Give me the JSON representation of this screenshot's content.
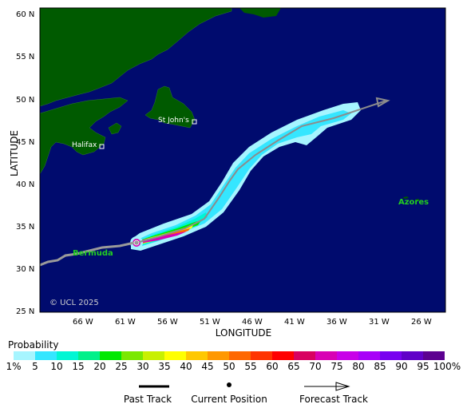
{
  "map": {
    "y_axis_title": "LATITUDE",
    "x_axis_title": "LONGITUDE",
    "lat_ticks": [
      "60 N",
      "55 N",
      "50 N",
      "45 N",
      "40 N",
      "35 N",
      "30 N",
      "25 N"
    ],
    "lon_ticks": [
      "66 W",
      "61 W",
      "56 W",
      "51 W",
      "46 W",
      "41 W",
      "36 W",
      "31 W",
      "26 W"
    ],
    "places": {
      "st_johns": "St John's",
      "halifax": "Halifax",
      "bermuda": "Bermuda",
      "azores": "Azores"
    },
    "copyright": "© UCL 2025",
    "colors": {
      "ocean": "#000b6e",
      "land": "#005a00",
      "place_label_green": "#22cc22",
      "track": "#9a9a9a"
    }
  },
  "legend": {
    "title": "Probability",
    "labels": [
      "1%",
      "5",
      "10",
      "15",
      "20",
      "25",
      "30",
      "35",
      "40",
      "45",
      "50",
      "55",
      "60",
      "65",
      "70",
      "75",
      "80",
      "85",
      "90",
      "95",
      "100%"
    ],
    "colors": [
      "#a6f5ff",
      "#35e6ff",
      "#00f6d4",
      "#00f08a",
      "#00e800",
      "#7ae800",
      "#c8f000",
      "#ffff00",
      "#ffc800",
      "#ff9800",
      "#ff6800",
      "#ff3400",
      "#ff0000",
      "#d80060",
      "#d800b4",
      "#c800e8",
      "#a800f8",
      "#7800f0",
      "#6000c8",
      "#5c0090"
    ]
  },
  "key": {
    "past": "Past Track",
    "current": "Current Position",
    "forecast": "Forecast Track"
  }
}
